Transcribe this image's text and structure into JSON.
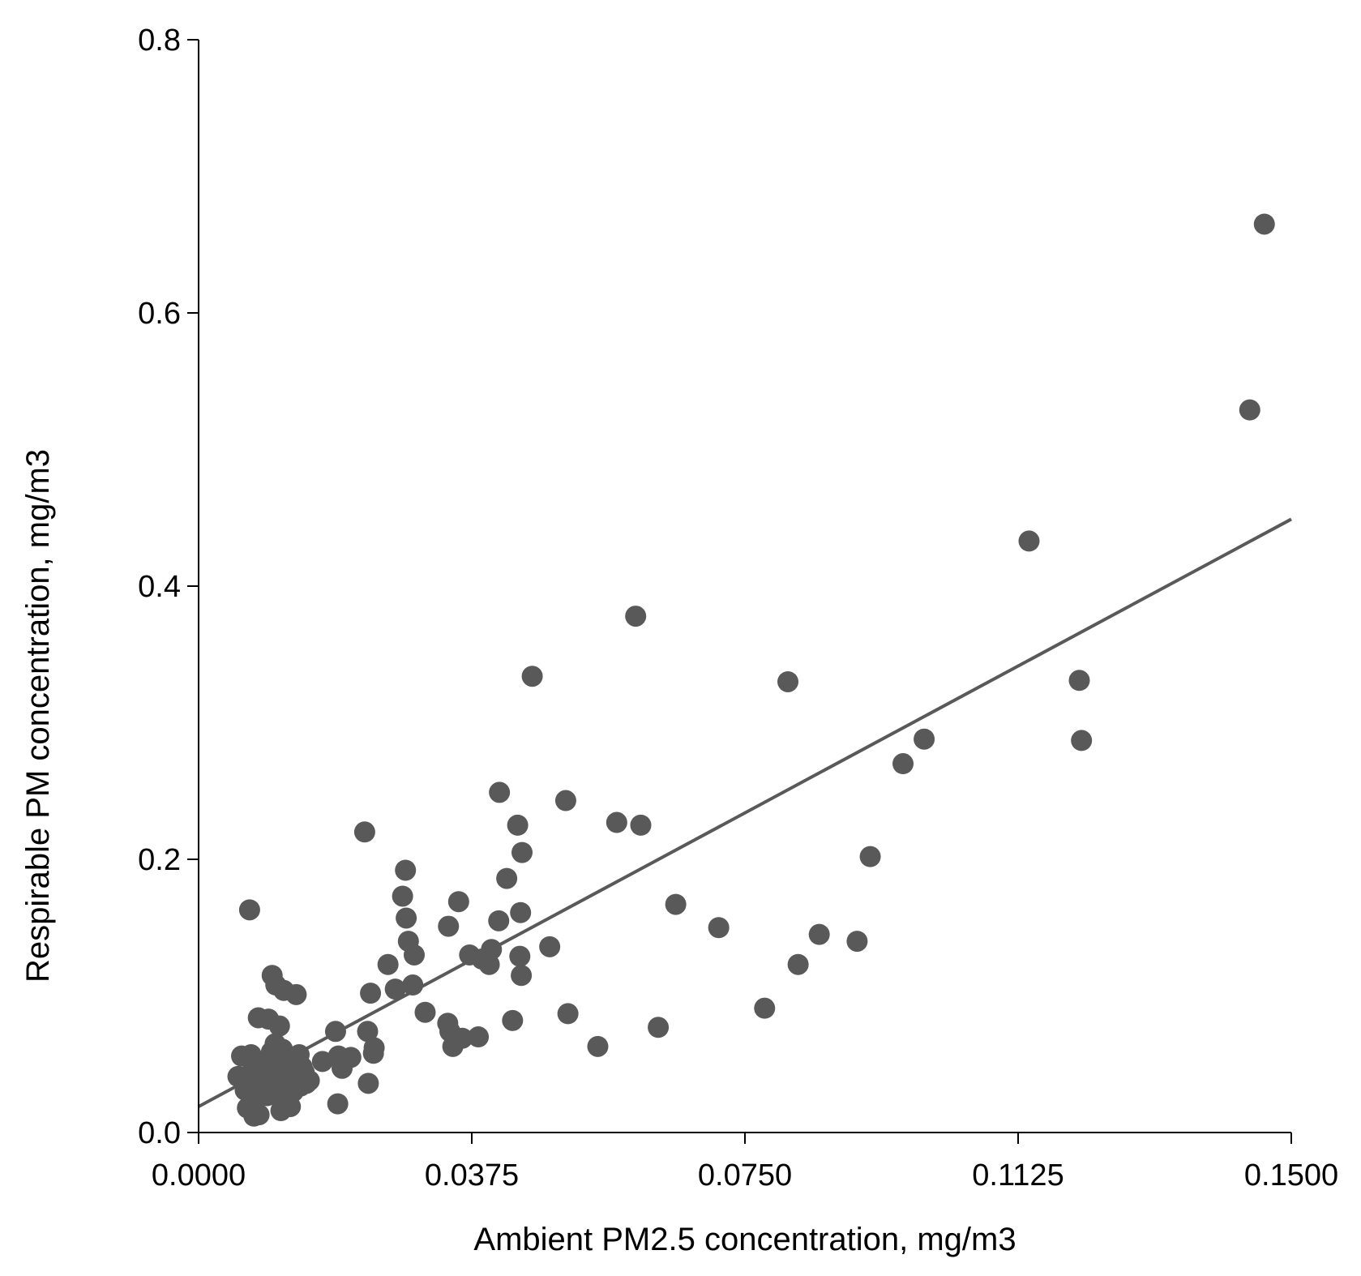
{
  "chart_data": {
    "type": "scatter",
    "title": "",
    "xlabel": "Ambient PM2.5 concentration, mg/m3",
    "ylabel": "Respirable PM concentration, mg/m3",
    "xlim": [
      0,
      0.15
    ],
    "ylim": [
      0,
      0.8
    ],
    "xticks": [
      0,
      0.0375,
      0.075,
      0.1125,
      0.15
    ],
    "xtick_labels": [
      "0.0000",
      "0.0375",
      "0.0750",
      "0.1125",
      "0.1500"
    ],
    "yticks": [
      0,
      0.2,
      0.4,
      0.6,
      0.8
    ],
    "ytick_labels": [
      "0.0",
      "0.2",
      "0.4",
      "0.6",
      "0.8"
    ],
    "grid": false,
    "colors": {
      "points": "#595959",
      "trend": "#595959",
      "axis": "#000000"
    },
    "trendline": {
      "x": [
        0,
        0.15
      ],
      "y": [
        0.019,
        0.449
      ]
    },
    "series": [
      {
        "name": "samples",
        "points": [
          [
            0.0054,
            0.041
          ],
          [
            0.0059,
            0.056
          ],
          [
            0.0064,
            0.031
          ],
          [
            0.0067,
            0.018
          ],
          [
            0.0069,
            0.042
          ],
          [
            0.007,
            0.163
          ],
          [
            0.0072,
            0.057
          ],
          [
            0.0075,
            0.049
          ],
          [
            0.0076,
            0.012
          ],
          [
            0.0078,
            0.025
          ],
          [
            0.008,
            0.038
          ],
          [
            0.0082,
            0.084
          ],
          [
            0.0083,
            0.013
          ],
          [
            0.0085,
            0.044
          ],
          [
            0.0087,
            0.031
          ],
          [
            0.0089,
            0.052
          ],
          [
            0.009,
            0.036
          ],
          [
            0.0091,
            0.046
          ],
          [
            0.0093,
            0.041
          ],
          [
            0.0094,
            0.027
          ],
          [
            0.0096,
            0.083
          ],
          [
            0.0097,
            0.039
          ],
          [
            0.0099,
            0.048
          ],
          [
            0.01,
            0.059
          ],
          [
            0.0101,
            0.115
          ],
          [
            0.0102,
            0.034
          ],
          [
            0.0104,
            0.044
          ],
          [
            0.0105,
            0.065
          ],
          [
            0.0106,
            0.108
          ],
          [
            0.0107,
            0.028
          ],
          [
            0.0108,
            0.049
          ],
          [
            0.0109,
            0.037
          ],
          [
            0.011,
            0.052
          ],
          [
            0.0111,
            0.078
          ],
          [
            0.0112,
            0.042
          ],
          [
            0.0113,
            0.016
          ],
          [
            0.0114,
            0.033
          ],
          [
            0.0115,
            0.061
          ],
          [
            0.0116,
            0.045
          ],
          [
            0.0117,
            0.104
          ],
          [
            0.0118,
            0.031
          ],
          [
            0.0119,
            0.04
          ],
          [
            0.012,
            0.057
          ],
          [
            0.0121,
            0.022
          ],
          [
            0.0122,
            0.048
          ],
          [
            0.0123,
            0.036
          ],
          [
            0.0124,
            0.05
          ],
          [
            0.0125,
            0.044
          ],
          [
            0.0126,
            0.019
          ],
          [
            0.0128,
            0.038
          ],
          [
            0.0129,
            0.053
          ],
          [
            0.013,
            0.03
          ],
          [
            0.0132,
            0.046
          ],
          [
            0.0134,
            0.101
          ],
          [
            0.0136,
            0.04
          ],
          [
            0.0138,
            0.057
          ],
          [
            0.014,
            0.034
          ],
          [
            0.0142,
            0.048
          ],
          [
            0.0145,
            0.044
          ],
          [
            0.0148,
            0.036
          ],
          [
            0.0152,
            0.038
          ],
          [
            0.017,
            0.052
          ],
          [
            0.0188,
            0.074
          ],
          [
            0.0191,
            0.021
          ],
          [
            0.0192,
            0.056
          ],
          [
            0.0197,
            0.047
          ],
          [
            0.0209,
            0.055
          ],
          [
            0.0228,
            0.22
          ],
          [
            0.0232,
            0.074
          ],
          [
            0.0233,
            0.036
          ],
          [
            0.0236,
            0.102
          ],
          [
            0.024,
            0.058
          ],
          [
            0.0241,
            0.062
          ],
          [
            0.026,
            0.123
          ],
          [
            0.027,
            0.105
          ],
          [
            0.028,
            0.173
          ],
          [
            0.0284,
            0.192
          ],
          [
            0.0285,
            0.157
          ],
          [
            0.0288,
            0.14
          ],
          [
            0.0294,
            0.108
          ],
          [
            0.0296,
            0.13
          ],
          [
            0.0311,
            0.088
          ],
          [
            0.0342,
            0.08
          ],
          [
            0.0343,
            0.151
          ],
          [
            0.0345,
            0.074
          ],
          [
            0.0349,
            0.063
          ],
          [
            0.0357,
            0.169
          ],
          [
            0.0362,
            0.069
          ],
          [
            0.0372,
            0.13
          ],
          [
            0.0384,
            0.07
          ],
          [
            0.0389,
            0.127
          ],
          [
            0.0399,
            0.123
          ],
          [
            0.0402,
            0.134
          ],
          [
            0.0412,
            0.155
          ],
          [
            0.0413,
            0.249
          ],
          [
            0.0423,
            0.186
          ],
          [
            0.0431,
            0.082
          ],
          [
            0.0438,
            0.225
          ],
          [
            0.0441,
            0.129
          ],
          [
            0.0442,
            0.161
          ],
          [
            0.0443,
            0.115
          ],
          [
            0.0444,
            0.205
          ],
          [
            0.0458,
            0.334
          ],
          [
            0.0482,
            0.136
          ],
          [
            0.0504,
            0.243
          ],
          [
            0.0507,
            0.087
          ],
          [
            0.0548,
            0.063
          ],
          [
            0.0574,
            0.227
          ],
          [
            0.06,
            0.378
          ],
          [
            0.0607,
            0.225
          ],
          [
            0.0631,
            0.077
          ],
          [
            0.0655,
            0.167
          ],
          [
            0.0714,
            0.15
          ],
          [
            0.0777,
            0.091
          ],
          [
            0.0809,
            0.33
          ],
          [
            0.0823,
            0.123
          ],
          [
            0.0852,
            0.145
          ],
          [
            0.0904,
            0.14
          ],
          [
            0.0922,
            0.202
          ],
          [
            0.0967,
            0.27
          ],
          [
            0.0996,
            0.288
          ],
          [
            0.114,
            0.433
          ],
          [
            0.1209,
            0.331
          ],
          [
            0.1212,
            0.287
          ],
          [
            0.1443,
            0.529
          ],
          [
            0.1463,
            0.665
          ]
        ]
      }
    ]
  }
}
